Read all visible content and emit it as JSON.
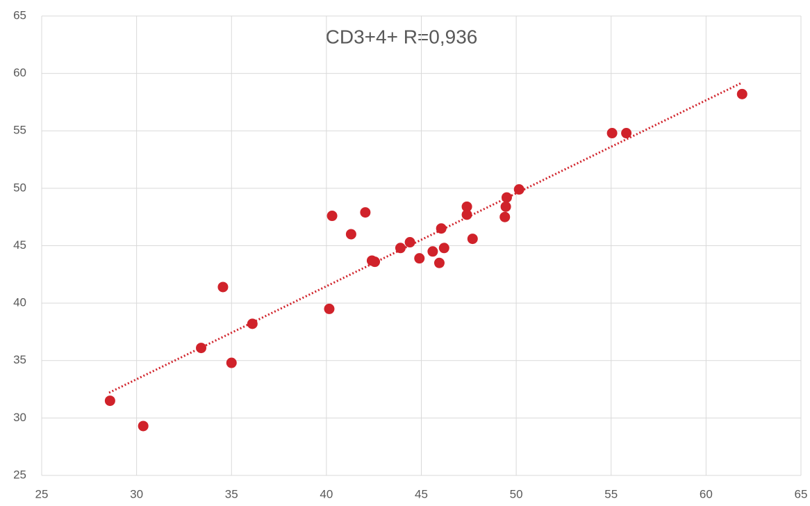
{
  "chart_data": {
    "type": "scatter",
    "title": "CD3+4+ R=0,936",
    "series": [
      {
        "color": "#d0222a",
        "x": [
          28.6,
          30.35,
          33.4,
          34.55,
          35.0,
          36.1,
          40.15,
          40.3,
          41.3,
          42.05,
          42.4,
          42.55,
          43.9,
          44.4,
          44.9,
          45.6,
          45.95,
          46.05,
          46.2,
          47.4,
          47.4,
          47.7,
          49.4,
          49.45,
          49.5,
          50.15,
          55.05,
          55.8,
          61.9
        ],
        "y": [
          31.5,
          29.3,
          36.1,
          41.4,
          34.8,
          38.2,
          39.5,
          47.6,
          46.0,
          47.9,
          43.7,
          43.6,
          44.8,
          45.3,
          43.9,
          44.5,
          43.5,
          46.5,
          44.8,
          48.4,
          47.7,
          45.6,
          47.5,
          48.4,
          49.2,
          49.9,
          54.8,
          54.8,
          58.2
        ]
      }
    ],
    "trendline": {
      "color": "#d0222a",
      "x": [
        28.55,
        61.9
      ],
      "y": [
        32.2,
        59.2
      ]
    },
    "xlim": [
      25,
      65
    ],
    "xticks": [
      25,
      30,
      35,
      40,
      45,
      50,
      55,
      60,
      65
    ],
    "ylim": [
      25,
      65
    ],
    "yticks": [
      25,
      30,
      35,
      40,
      45,
      50,
      55,
      60,
      65
    ],
    "grid": true
  }
}
